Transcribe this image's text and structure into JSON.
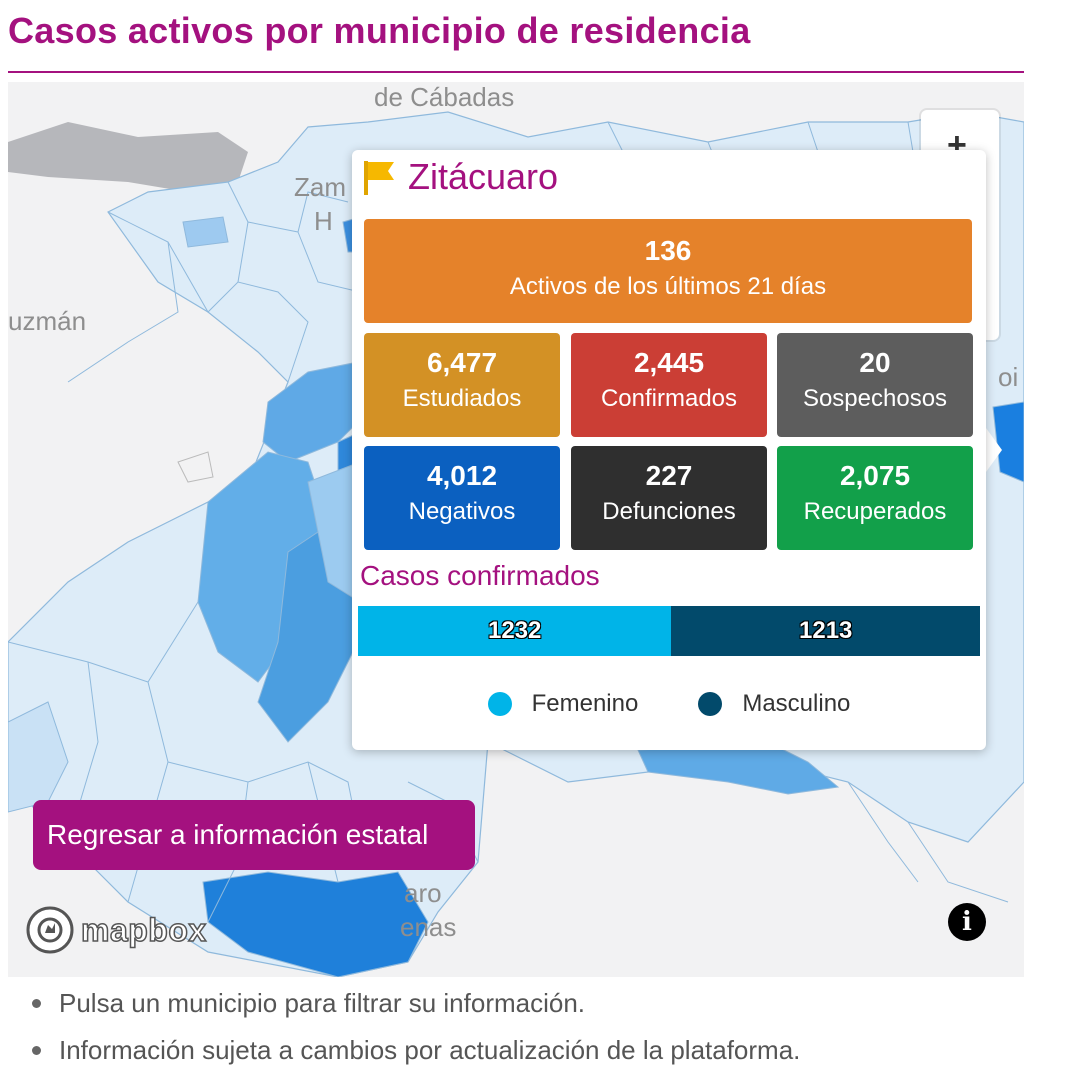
{
  "page": {
    "title": "Casos activos por municipio de residencia"
  },
  "map": {
    "place_labels": [
      "de Cábadas",
      "Zam",
      "H",
      "uzmán",
      "oi",
      "aro",
      "enas"
    ],
    "zoom_in_label": "+",
    "back_button_label": "Regresar a información estatal",
    "attribution_logo": "mapbox",
    "info_icon": "i"
  },
  "popup": {
    "municipality": "Zitácuaro",
    "flag_icon": "flag-icon",
    "activos": {
      "value": "136",
      "label": "Activos de los últimos 21 días"
    },
    "stats": [
      {
        "value": "6,477",
        "label": "Estudiados"
      },
      {
        "value": "2,445",
        "label": "Confirmados"
      },
      {
        "value": "20",
        "label": "Sospechosos"
      },
      {
        "value": "4,012",
        "label": "Negativos"
      },
      {
        "value": "227",
        "label": "Defunciones"
      },
      {
        "value": "2,075",
        "label": "Recuperados"
      }
    ],
    "confirmed_title": "Casos confirmados",
    "confirmed_by_sex": [
      {
        "name": "Femenino",
        "value": "1232",
        "color": "#00b4e8"
      },
      {
        "name": "Masculino",
        "value": "1213",
        "color": "#024a6b"
      }
    ]
  },
  "notes": [
    "Pulsa un municipio para filtrar su información.",
    "Información sujeta a cambios por actualización de la plataforma."
  ],
  "colors": {
    "brand": "#a4117f",
    "activos": "#e5822a",
    "estudiados": "#d39125",
    "confirmados": "#cb3e35",
    "sospechosos": "#5d5d5d",
    "negativos": "#0b60c0",
    "defunciones": "#2f2f2f",
    "recuperados": "#12a04a"
  }
}
